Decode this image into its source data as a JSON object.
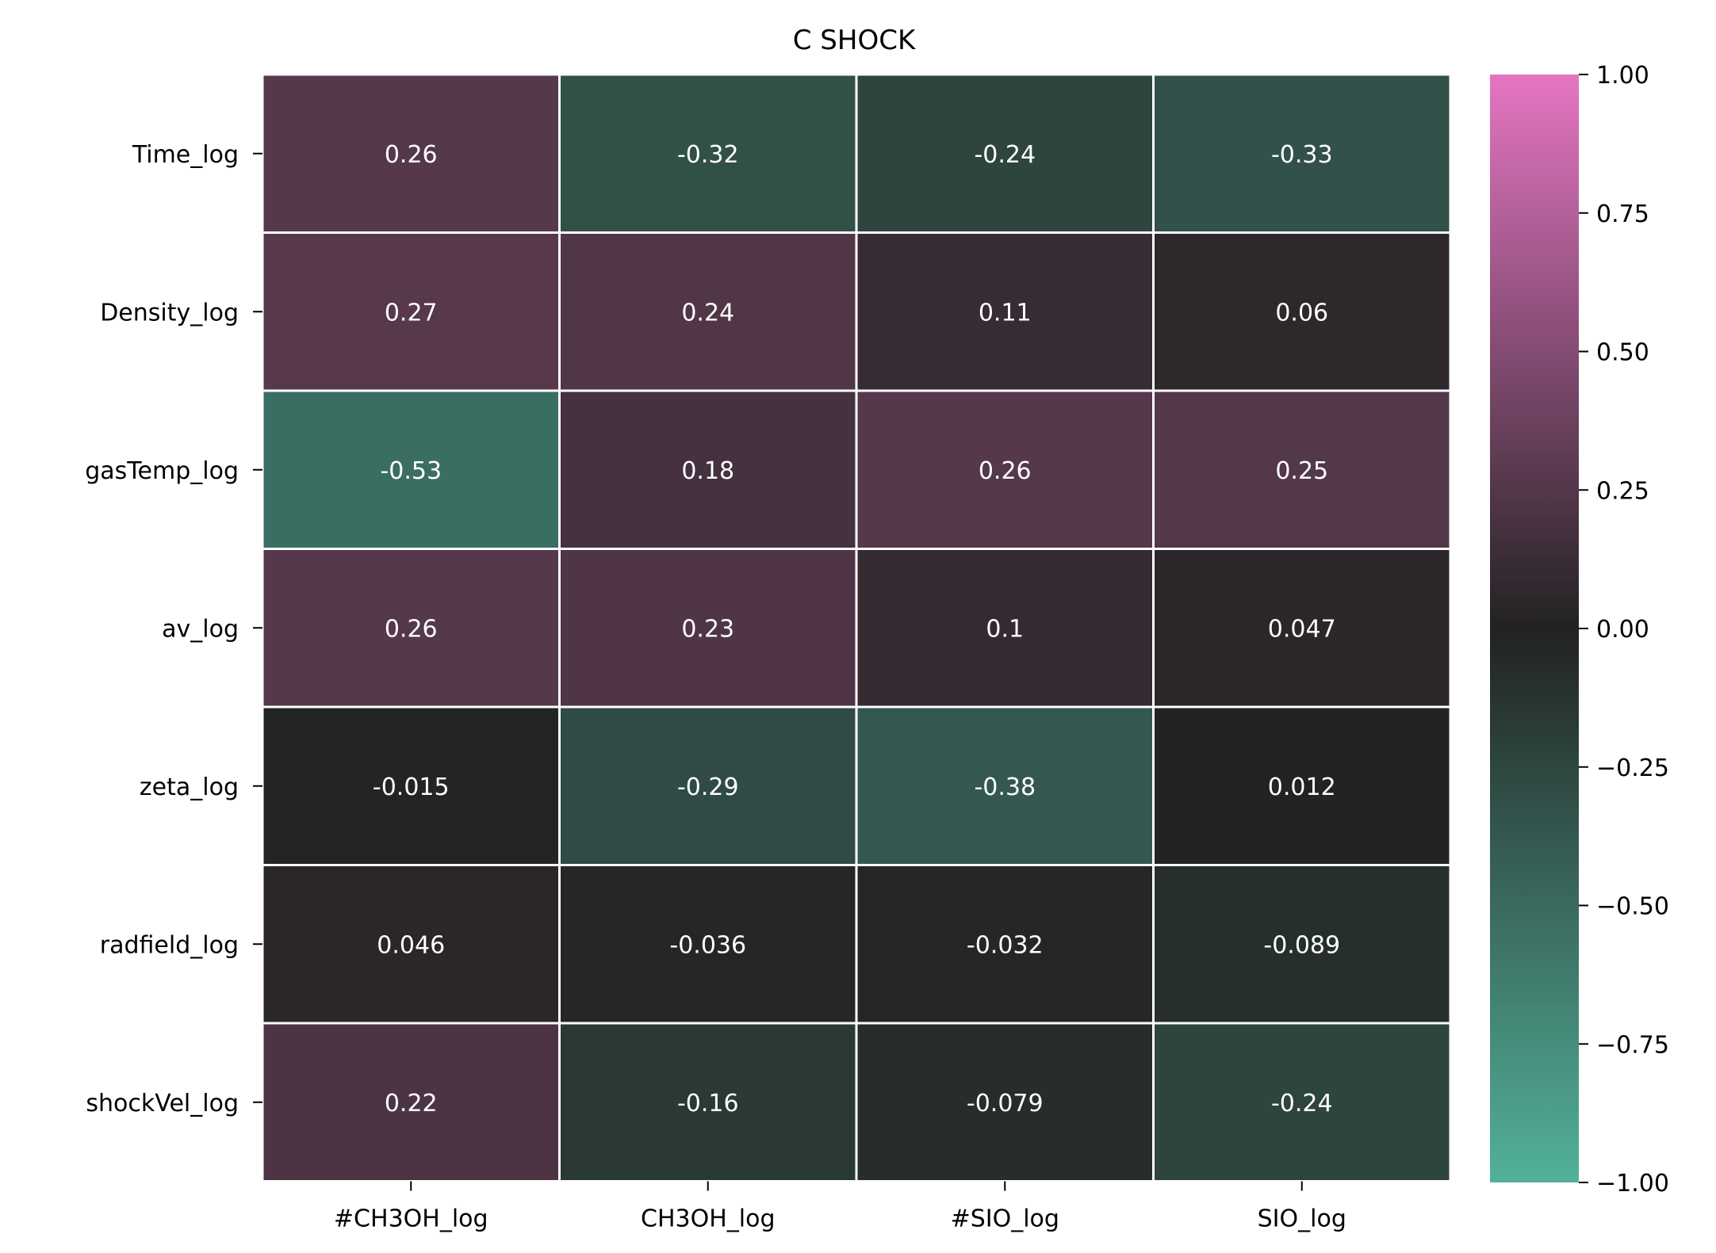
{
  "chart_data": {
    "type": "heatmap",
    "title": "C SHOCK",
    "xlabel": "",
    "ylabel": "",
    "rows": [
      "Time_log",
      "Density_log",
      "gasTemp_log",
      "av_log",
      "zeta_log",
      "radfield_log",
      "shockVel_log"
    ],
    "columns": [
      "#CH3OH_log",
      "CH3OH_log",
      "#SIO_log",
      "SIO_log"
    ],
    "values": [
      [
        0.26,
        -0.32,
        -0.24,
        -0.33
      ],
      [
        0.27,
        0.24,
        0.11,
        0.06
      ],
      [
        -0.53,
        0.18,
        0.26,
        0.25
      ],
      [
        0.26,
        0.23,
        0.1,
        0.047
      ],
      [
        -0.015,
        -0.29,
        -0.38,
        0.012
      ],
      [
        0.046,
        -0.036,
        -0.032,
        -0.089
      ],
      [
        0.22,
        -0.16,
        -0.079,
        -0.24
      ]
    ],
    "cell_labels": [
      [
        "0.26",
        "-0.32",
        "-0.24",
        "-0.33"
      ],
      [
        "0.27",
        "0.24",
        "0.11",
        "0.06"
      ],
      [
        "-0.53",
        "0.18",
        "0.26",
        "0.25"
      ],
      [
        "0.26",
        "0.23",
        "0.1",
        "0.047"
      ],
      [
        "-0.015",
        "-0.29",
        "-0.38",
        "0.012"
      ],
      [
        "0.046",
        "-0.036",
        "-0.032",
        "-0.089"
      ],
      [
        "0.22",
        "-0.16",
        "-0.079",
        "-0.24"
      ]
    ],
    "colorbar": {
      "vmin": -1.0,
      "vmax": 1.0,
      "ticks": [
        1.0,
        0.75,
        0.5,
        0.25,
        0.0,
        -0.25,
        -0.5,
        -0.75,
        -1.0
      ],
      "tick_labels": [
        "1.00",
        "0.75",
        "0.50",
        "0.25",
        "0.00",
        "−0.25",
        "−0.50",
        "−0.75",
        "−1.00"
      ],
      "colors": {
        "min": "#52b19a",
        "mid": "#222222",
        "max": "#e575c2"
      }
    },
    "grid": false,
    "cell_border_color": "#ffffff"
  }
}
